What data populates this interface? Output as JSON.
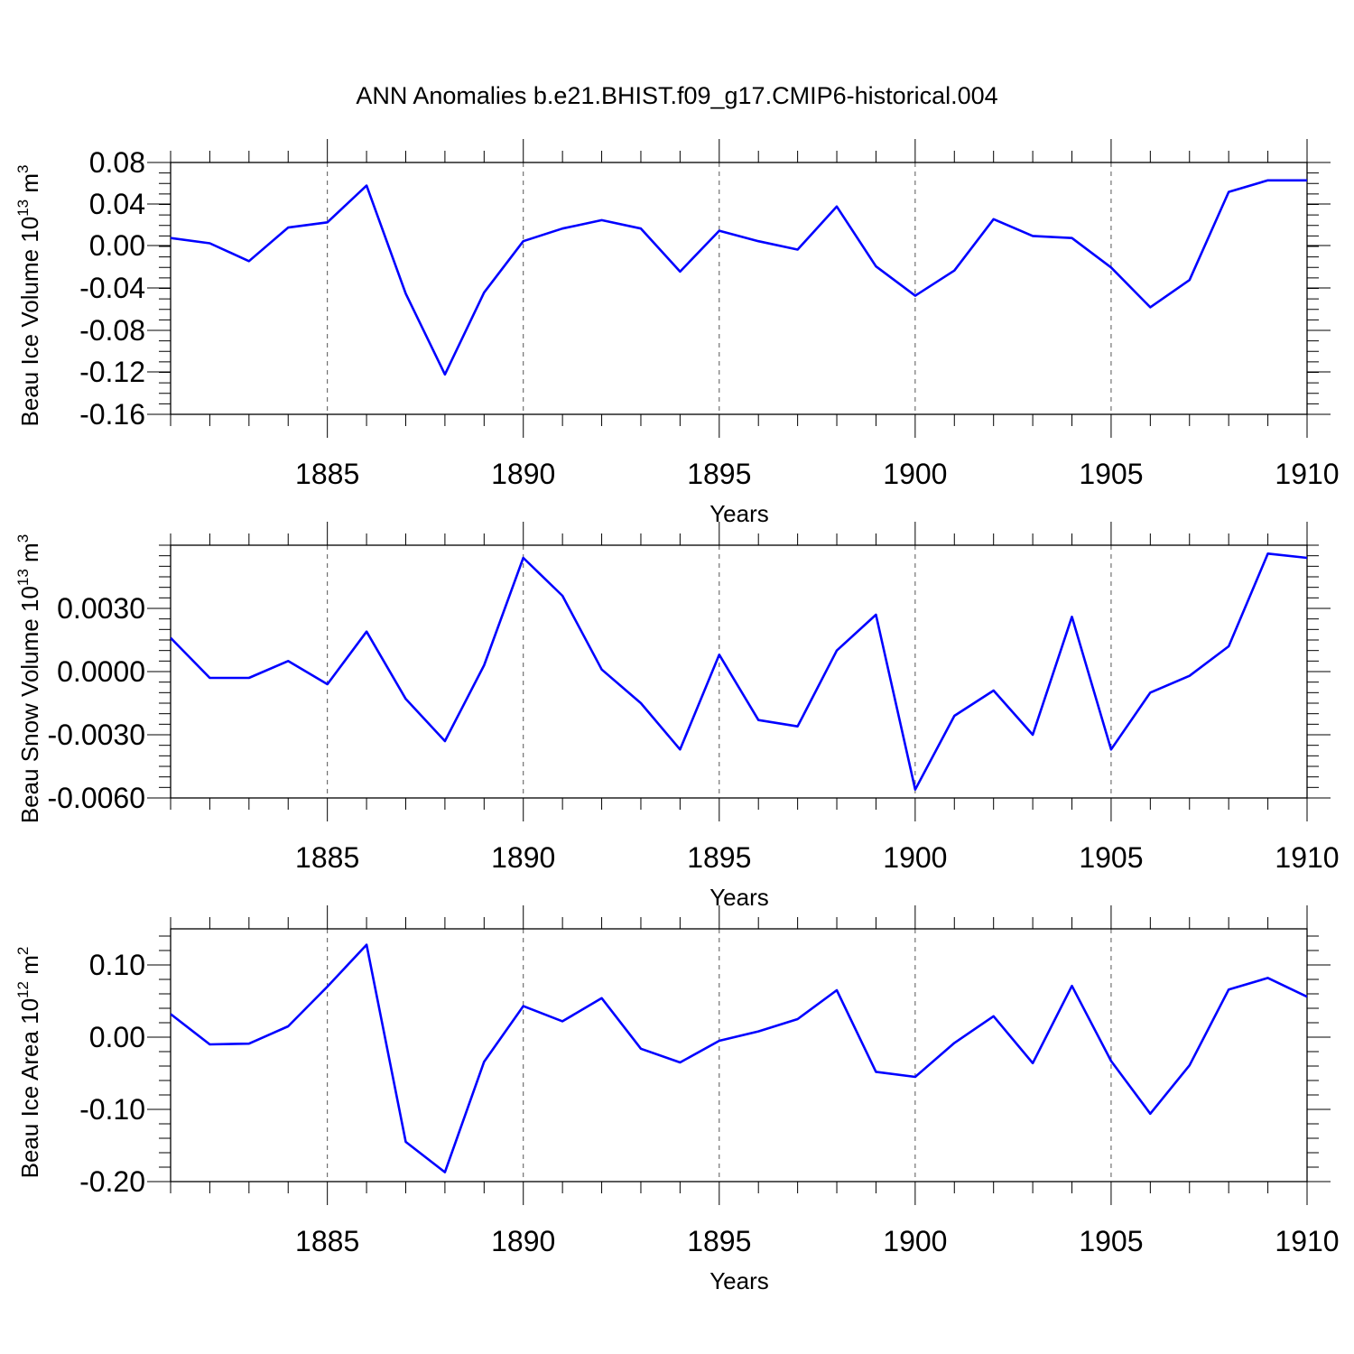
{
  "title": "ANN Anomalies b.e21.BHIST.f09_g17.CMIP6-historical.004",
  "chart_data": [
    {
      "type": "line",
      "title": "ANN Anomalies b.e21.BHIST.f09_g17.CMIP6-historical.004",
      "xlabel": "Years",
      "ylabel": "Beau Ice Volume",
      "ylabel_unit": "10",
      "ylabel_exp1": "13",
      "ylabel_unit2": " m",
      "ylabel_exp2": "3",
      "x": [
        1881,
        1882,
        1883,
        1884,
        1885,
        1886,
        1887,
        1888,
        1889,
        1890,
        1891,
        1892,
        1893,
        1894,
        1895,
        1896,
        1897,
        1898,
        1899,
        1900,
        1901,
        1902,
        1903,
        1904,
        1905,
        1906,
        1907,
        1908,
        1909,
        1910
      ],
      "values": [
        0.008,
        0.003,
        -0.014,
        0.018,
        0.023,
        0.058,
        -0.045,
        -0.122,
        -0.044,
        0.005,
        0.017,
        0.025,
        0.017,
        -0.024,
        0.015,
        0.005,
        -0.003,
        0.038,
        -0.019,
        -0.047,
        -0.023,
        0.026,
        0.01,
        0.008,
        -0.02,
        -0.058,
        -0.032,
        0.052,
        0.063,
        0.063
      ],
      "xlim": [
        1881,
        1910
      ],
      "ylim": [
        -0.16,
        0.08
      ],
      "xticks": [
        "1885",
        "1890",
        "1895",
        "1900",
        "1905",
        "1910"
      ],
      "yticks": [
        "0.08",
        "0.04",
        "0.00",
        "-0.04",
        "-0.08",
        "-0.12",
        "-0.16"
      ],
      "line_color": "#0000ff",
      "grid": "vertical dashed at major x ticks"
    },
    {
      "type": "line",
      "xlabel": "Years",
      "ylabel": "Beau Snow Volume",
      "ylabel_unit": "10",
      "ylabel_exp1": "13",
      "ylabel_unit2": " m",
      "ylabel_exp2": "3",
      "x": [
        1881,
        1882,
        1883,
        1884,
        1885,
        1886,
        1887,
        1888,
        1889,
        1890,
        1891,
        1892,
        1893,
        1894,
        1895,
        1896,
        1897,
        1898,
        1899,
        1900,
        1901,
        1902,
        1903,
        1904,
        1905,
        1906,
        1907,
        1908,
        1909,
        1910
      ],
      "values": [
        0.0016,
        -0.0003,
        -0.0003,
        0.0005,
        -0.0006,
        0.0019,
        -0.0013,
        -0.0033,
        0.0003,
        0.0054,
        0.0036,
        0.0001,
        -0.0015,
        -0.0037,
        0.0008,
        -0.0023,
        -0.0026,
        0.001,
        0.0027,
        -0.0056,
        -0.0021,
        -0.0009,
        -0.003,
        0.0026,
        -0.0037,
        -0.001,
        -0.0002,
        0.0012,
        0.0056,
        0.0054
      ],
      "xlim": [
        1881,
        1910
      ],
      "ylim": [
        -0.006,
        0.006
      ],
      "xticks": [
        "1885",
        "1890",
        "1895",
        "1900",
        "1905",
        "1910"
      ],
      "yticks": [
        "0.0030",
        "0.0000",
        "-0.0030",
        "-0.0060"
      ],
      "line_color": "#0000ff",
      "grid": "vertical dashed at major x ticks"
    },
    {
      "type": "line",
      "xlabel": "Years",
      "ylabel": "Beau Ice Area",
      "ylabel_unit": "10",
      "ylabel_exp1": "12",
      "ylabel_unit2": " m",
      "ylabel_exp2": "2",
      "x": [
        1881,
        1882,
        1883,
        1884,
        1885,
        1886,
        1887,
        1888,
        1889,
        1890,
        1891,
        1892,
        1893,
        1894,
        1895,
        1896,
        1897,
        1898,
        1899,
        1900,
        1901,
        1902,
        1903,
        1904,
        1905,
        1906,
        1907,
        1908,
        1909,
        1910
      ],
      "values": [
        0.032,
        -0.01,
        -0.009,
        0.015,
        0.07,
        0.128,
        -0.145,
        -0.187,
        -0.034,
        0.043,
        0.022,
        0.054,
        -0.016,
        -0.035,
        -0.005,
        0.008,
        0.025,
        0.065,
        -0.048,
        -0.055,
        -0.008,
        0.029,
        -0.036,
        0.071,
        -0.033,
        -0.106,
        -0.039,
        0.066,
        0.082,
        0.056
      ],
      "xlim": [
        1881,
        1910
      ],
      "ylim": [
        -0.2,
        0.15
      ],
      "xticks": [
        "1885",
        "1890",
        "1895",
        "1900",
        "1905",
        "1910"
      ],
      "yticks": [
        "0.10",
        "0.00",
        "-0.10",
        "-0.20"
      ],
      "line_color": "#0000ff",
      "grid": "vertical dashed at major x ticks"
    }
  ]
}
